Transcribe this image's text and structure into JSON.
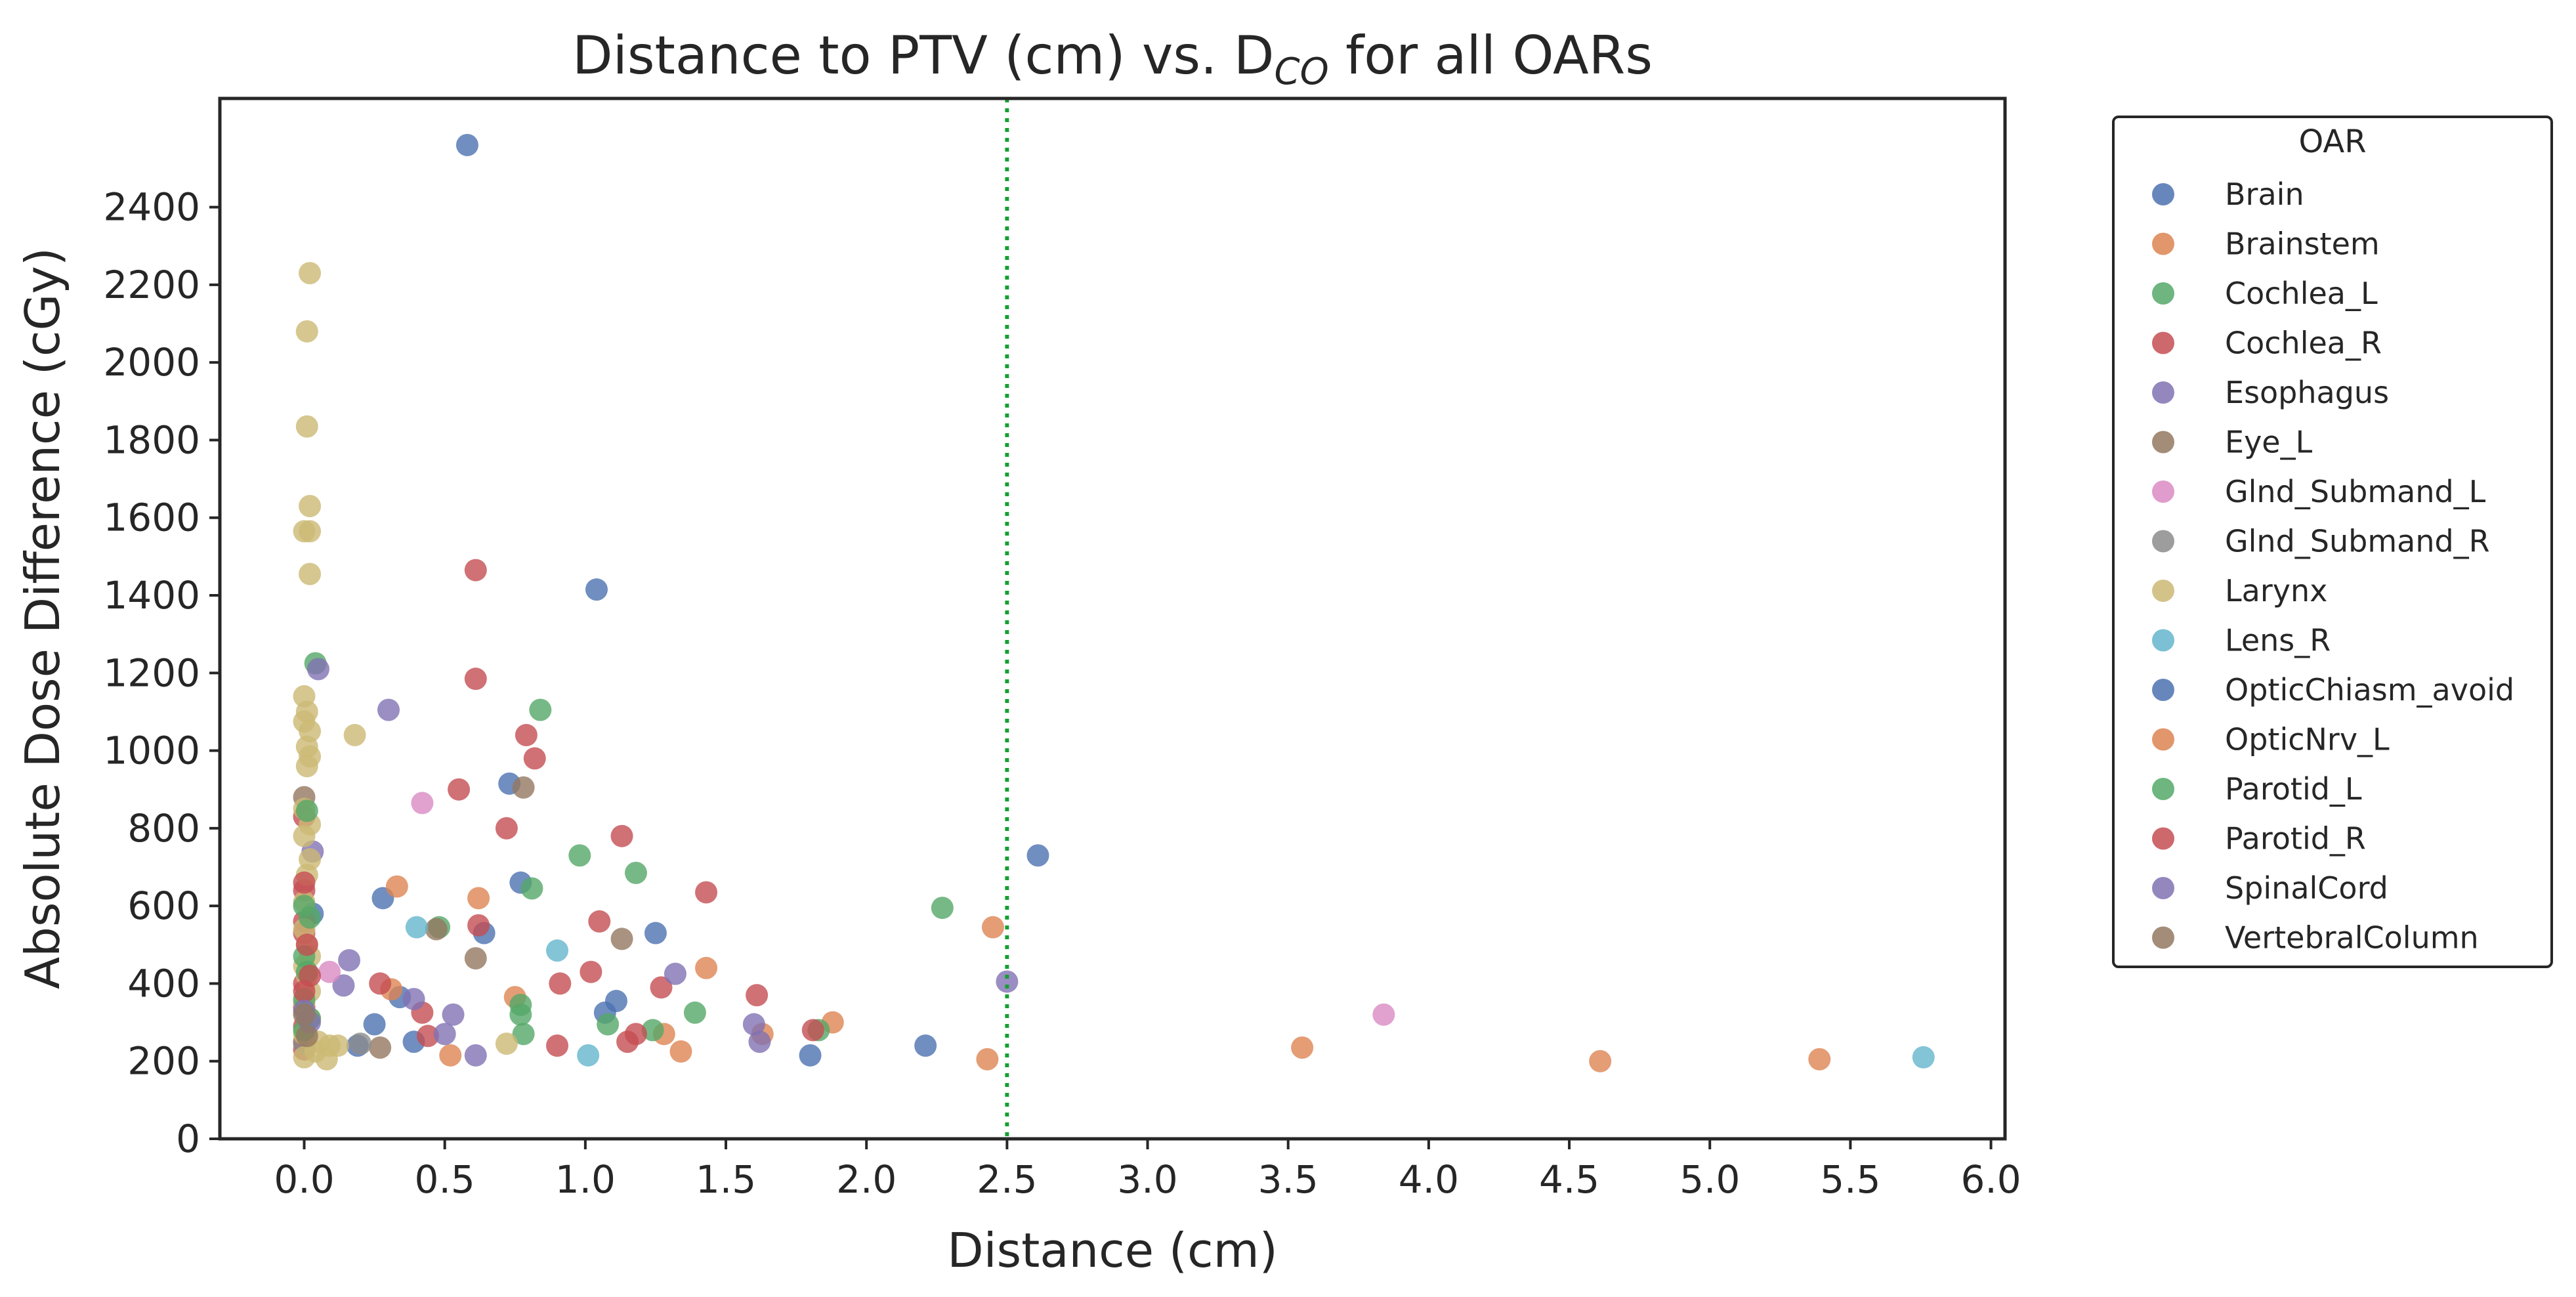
{
  "chart_data": {
    "type": "scatter",
    "title": {
      "prefix": "Distance to PTV (cm) vs. D",
      "subscript": "CO",
      "suffix": " for all OARs"
    },
    "xlabel": "Distance (cm)",
    "ylabel": "Absolute Dose Difference (cGy)",
    "xlim": [
      -0.3,
      6.05
    ],
    "ylim": [
      0,
      2680
    ],
    "xticks": [
      0.0,
      0.5,
      1.0,
      1.5,
      2.0,
      2.5,
      3.0,
      3.5,
      4.0,
      4.5,
      5.0,
      5.5,
      6.0
    ],
    "xtick_labels": [
      "0.0",
      "0.5",
      "1.0",
      "1.5",
      "2.0",
      "2.5",
      "3.0",
      "3.5",
      "4.0",
      "4.5",
      "5.0",
      "5.5",
      "6.0"
    ],
    "yticks": [
      0,
      200,
      400,
      600,
      800,
      1000,
      1200,
      1400,
      1600,
      1800,
      2000,
      2200,
      2400
    ],
    "ytick_labels": [
      "0",
      "200",
      "400",
      "600",
      "800",
      "1000",
      "1200",
      "1400",
      "1600",
      "1800",
      "2000",
      "2200",
      "2400"
    ],
    "grid": false,
    "reference_line": {
      "axis": "x",
      "value": 2.5,
      "style": "dotted",
      "color": "#15a033"
    },
    "legend": {
      "title": "OAR",
      "position": "outside-right"
    },
    "series": [
      {
        "name": "Brain",
        "color": "#4c72b0",
        "points": [
          [
            0.58,
            2560
          ],
          [
            1.04,
            1415
          ],
          [
            0.73,
            915
          ],
          [
            2.61,
            730
          ],
          [
            0.77,
            660
          ],
          [
            0.28,
            620
          ],
          [
            0.03,
            580
          ],
          [
            0.64,
            530
          ],
          [
            1.25,
            530
          ],
          [
            1.11,
            355
          ],
          [
            1.07,
            325
          ],
          [
            0.34,
            365
          ],
          [
            0.25,
            295
          ],
          [
            0.39,
            250
          ],
          [
            0.19,
            240
          ],
          [
            1.8,
            215
          ],
          [
            2.21,
            240
          ]
        ]
      },
      {
        "name": "Brainstem",
        "color": "#dd8452",
        "points": [
          [
            0.33,
            650
          ],
          [
            0.62,
            620
          ],
          [
            2.45,
            545
          ],
          [
            1.43,
            440
          ],
          [
            0.75,
            365
          ],
          [
            0.31,
            385
          ],
          [
            1.88,
            300
          ],
          [
            1.28,
            270
          ],
          [
            1.63,
            270
          ],
          [
            0.52,
            215
          ],
          [
            1.34,
            225
          ],
          [
            2.43,
            205
          ],
          [
            3.55,
            235
          ]
        ]
      },
      {
        "name": "Cochlea_L",
        "color": "#55a868",
        "points": [
          [
            0.04,
            1225
          ],
          [
            0.84,
            1105
          ],
          [
            0.98,
            730
          ],
          [
            1.18,
            685
          ],
          [
            0.81,
            645
          ],
          [
            2.27,
            595
          ],
          [
            0.48,
            545
          ],
          [
            0.77,
            345
          ],
          [
            1.39,
            325
          ],
          [
            0.77,
            320
          ],
          [
            1.08,
            295
          ],
          [
            1.24,
            280
          ],
          [
            1.83,
            280
          ],
          [
            0.78,
            270
          ]
        ]
      },
      {
        "name": "Cochlea_R",
        "color": "#c44e52",
        "points": [
          [
            0.61,
            1465
          ],
          [
            0.61,
            1185
          ],
          [
            0.79,
            1040
          ],
          [
            0.82,
            980
          ],
          [
            0.55,
            900
          ],
          [
            0.72,
            800
          ],
          [
            1.13,
            780
          ],
          [
            1.43,
            635
          ],
          [
            1.05,
            560
          ],
          [
            0.62,
            550
          ],
          [
            1.02,
            430
          ],
          [
            1.27,
            390
          ],
          [
            0.91,
            400
          ],
          [
            0.27,
            400
          ],
          [
            1.61,
            370
          ],
          [
            0.42,
            325
          ],
          [
            1.15,
            250
          ],
          [
            1.18,
            270
          ],
          [
            0.9,
            240
          ],
          [
            1.81,
            280
          ],
          [
            0.44,
            265
          ],
          [
            0.0,
            830
          ],
          [
            0.0,
            640
          ],
          [
            0.0,
            560
          ],
          [
            0.0,
            530
          ],
          [
            0.0,
            400
          ],
          [
            0.0,
            340
          ],
          [
            0.0,
            290
          ],
          [
            0.0,
            250
          ],
          [
            0.0,
            230
          ]
        ]
      },
      {
        "name": "Esophagus",
        "color": "#8172b3",
        "points": [
          [
            0.3,
            1105
          ],
          [
            0.05,
            1210
          ],
          [
            0.03,
            740
          ],
          [
            0.16,
            460
          ],
          [
            0.14,
            395
          ],
          [
            0.39,
            360
          ],
          [
            1.32,
            425
          ],
          [
            2.5,
            405
          ],
          [
            0.53,
            320
          ],
          [
            1.6,
            295
          ],
          [
            1.62,
            250
          ],
          [
            0.5,
            270
          ],
          [
            0.61,
            215
          ]
        ]
      },
      {
        "name": "Eye_L",
        "color": "#937860",
        "points": [
          [
            0.78,
            905
          ],
          [
            1.13,
            515
          ],
          [
            0.47,
            540
          ],
          [
            0.61,
            465
          ],
          [
            0.27,
            235
          ],
          [
            0.0,
            880
          ]
        ]
      },
      {
        "name": "Glnd_Submand_L",
        "color": "#da8bc3",
        "points": [
          [
            0.42,
            865
          ],
          [
            0.09,
            430
          ],
          [
            3.84,
            320
          ]
        ]
      },
      {
        "name": "Glnd_Submand_R",
        "color": "#8c8c8c",
        "points": [
          [
            0.2,
            245
          ],
          [
            0.0,
            245
          ]
        ]
      },
      {
        "name": "Larynx",
        "color": "#ccb974",
        "points": [
          [
            0.02,
            2230
          ],
          [
            0.01,
            2080
          ],
          [
            0.01,
            1835
          ],
          [
            0.02,
            1630
          ],
          [
            0.0,
            1565
          ],
          [
            0.02,
            1565
          ],
          [
            0.02,
            1455
          ],
          [
            0.0,
            1140
          ],
          [
            0.01,
            1100
          ],
          [
            0.0,
            1075
          ],
          [
            0.02,
            1050
          ],
          [
            0.01,
            1010
          ],
          [
            0.02,
            985
          ],
          [
            0.01,
            960
          ],
          [
            0.18,
            1040
          ],
          [
            0.0,
            850
          ],
          [
            0.02,
            810
          ],
          [
            0.0,
            780
          ],
          [
            0.02,
            720
          ],
          [
            0.01,
            680
          ],
          [
            0.0,
            610
          ],
          [
            0.0,
            540
          ],
          [
            0.01,
            500
          ],
          [
            0.02,
            470
          ],
          [
            0.0,
            445
          ],
          [
            0.01,
            420
          ],
          [
            0.02,
            380
          ],
          [
            0.0,
            350
          ],
          [
            0.02,
            310
          ],
          [
            0.0,
            270
          ],
          [
            0.05,
            250
          ],
          [
            0.09,
            240
          ],
          [
            0.04,
            225
          ],
          [
            0.0,
            210
          ],
          [
            0.08,
            205
          ],
          [
            0.12,
            240
          ],
          [
            0.72,
            245
          ]
        ]
      },
      {
        "name": "Lens_R",
        "color": "#64b5cd",
        "points": [
          [
            0.4,
            545
          ],
          [
            0.9,
            485
          ],
          [
            1.01,
            215
          ],
          [
            5.76,
            210
          ]
        ]
      },
      {
        "name": "OpticChiasm_avoid",
        "color": "#4c72b0",
        "points": []
      },
      {
        "name": "OpticNrv_L",
        "color": "#dd8452",
        "points": [
          [
            4.61,
            200
          ],
          [
            5.39,
            205
          ]
        ]
      },
      {
        "name": "Parotid_L",
        "color": "#55a868",
        "points": [
          [
            0.01,
            845
          ],
          [
            0.0,
            600
          ],
          [
            0.02,
            570
          ],
          [
            0.0,
            470
          ],
          [
            0.01,
            430
          ],
          [
            0.0,
            360
          ],
          [
            0.02,
            310
          ],
          [
            0.0,
            280
          ]
        ]
      },
      {
        "name": "Parotid_R",
        "color": "#c44e52",
        "points": [
          [
            0.0,
            660
          ],
          [
            0.01,
            500
          ],
          [
            0.0,
            380
          ],
          [
            0.02,
            420
          ]
        ]
      },
      {
        "name": "SpinalCord",
        "color": "#8172b3",
        "points": [
          [
            0.0,
            330
          ],
          [
            0.02,
            300
          ]
        ]
      },
      {
        "name": "VertebralColumn",
        "color": "#937860",
        "points": [
          [
            0.0,
            320
          ],
          [
            0.01,
            265
          ]
        ]
      }
    ]
  }
}
